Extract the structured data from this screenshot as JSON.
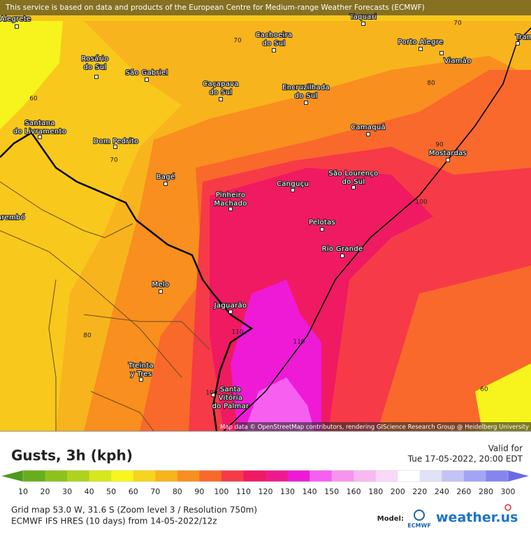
{
  "banner": "This service is based on data and products of the European Centre for Medium-range Weather Forecasts (ECMWF)",
  "attribution": "Map data © OpenStreetMap contributors, rendering GIScience Research Group @ Heidelberg University",
  "cities": [
    [
      "Alegrete"
    ],
    [
      "Rosário",
      "do Sul"
    ],
    [
      "São Gabriel"
    ],
    [
      "Cachoeira",
      "do Sul"
    ],
    [
      "Caçapava",
      "do Sul"
    ],
    [
      "Encruzilhada",
      "do Sul"
    ],
    [
      "Taquari"
    ],
    [
      "Porto Alegre"
    ],
    [
      "Viamão"
    ],
    [
      "Tramandaí"
    ],
    [
      "Santana",
      "do Livramento"
    ],
    [
      "Dom Pedrito"
    ],
    [
      "Bagé"
    ],
    [
      "Camaquã"
    ],
    [
      "São Lourenço",
      "do Sul"
    ],
    [
      "Mostardas"
    ],
    [
      "Canguçu"
    ],
    [
      "Pinheiro",
      "Machado"
    ],
    [
      "Pelotas"
    ],
    [
      "Rio Grande"
    ],
    [
      "Tacuarembó"
    ],
    [
      "Melo"
    ],
    [
      "Jaguarão"
    ],
    [
      "Treinta",
      "y Tres"
    ],
    [
      "Santa",
      "Vitória",
      "do Palmar"
    ]
  ],
  "contour_labels": [
    70,
    60,
    70,
    80,
    90,
    100,
    110,
    110,
    80,
    100,
    60,
    70
  ],
  "legend": {
    "title": "Gusts, 3h (kph)",
    "ticks": [
      10,
      20,
      30,
      40,
      50,
      60,
      70,
      80,
      90,
      100,
      110,
      120,
      130,
      140,
      150,
      160,
      180,
      200,
      220,
      240,
      260,
      280,
      300
    ],
    "colors": [
      "#4f9a1c",
      "#68ad1c",
      "#8cc21c",
      "#afd31c",
      "#d6e71c",
      "#f7f71c",
      "#f8d41c",
      "#f8b41c",
      "#f88f1f",
      "#f8692b",
      "#f63a48",
      "#ef1a62",
      "#ef198f",
      "#ef1ad6",
      "#f75ff0",
      "#f795ee",
      "#f8b8f2",
      "#f9d9f9",
      "#ffffff",
      "#e1e1f8",
      "#c3c3f8",
      "#a4a4f6",
      "#8585f0",
      "#6b6be6"
    ]
  },
  "valid_label": "Valid for",
  "valid_time": "Tue 17-05-2022, 20:00 EDT",
  "grid_info": "Grid map 53.0 W, 31.6 S (Zoom level 3 / Resolution 750m)",
  "model_info": "ECMWF IFS HRES (10 days) from 14-05-2022/12z",
  "model_label": "Model:",
  "model_name": "ECMWF",
  "brand": "weather.us"
}
